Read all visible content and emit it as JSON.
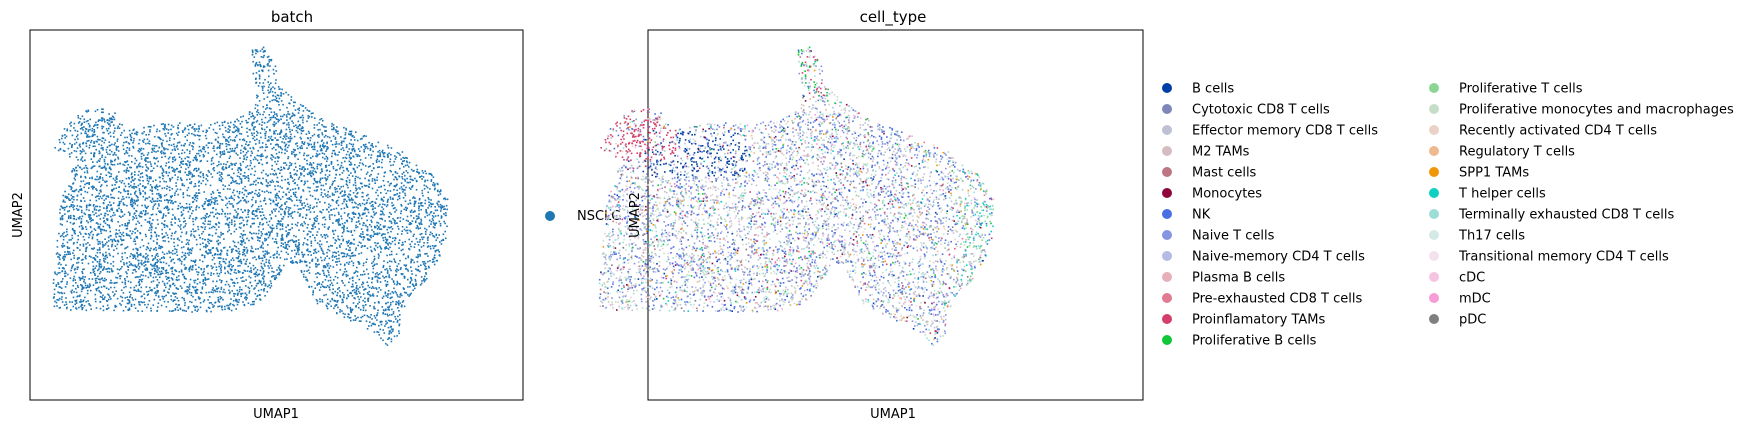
{
  "chart_data": [
    {
      "type": "scatter",
      "title": "batch",
      "xlabel": "UMAP1",
      "ylabel": "UMAP2",
      "grid": false,
      "axis_ticks": false,
      "legend_placement": "right",
      "series": [
        {
          "name": "NSCLC",
          "color": "#1f77b4",
          "region": "whole-embedding"
        }
      ]
    },
    {
      "type": "scatter",
      "title": "cell_type",
      "xlabel": "UMAP1",
      "ylabel": "UMAP2",
      "grid": false,
      "axis_ticks": false,
      "legend_placement": "right",
      "legend_columns": 2,
      "series": [
        {
          "name": "B cells",
          "color": "#023fa5"
        },
        {
          "name": "Cytotoxic CD8 T cells",
          "color": "#7d87b9"
        },
        {
          "name": "Effector memory CD8 T cells",
          "color": "#bec1d4"
        },
        {
          "name": "M2 TAMs",
          "color": "#d6bcc0"
        },
        {
          "name": "Mast cells",
          "color": "#bb7784"
        },
        {
          "name": "Monocytes",
          "color": "#8e063b"
        },
        {
          "name": "NK",
          "color": "#4a6fe3"
        },
        {
          "name": "Naive T cells",
          "color": "#8595e1"
        },
        {
          "name": "Naive-memory CD4 T cells",
          "color": "#b5bbe3"
        },
        {
          "name": "Plasma B cells",
          "color": "#e6afb9"
        },
        {
          "name": "Pre-exhausted CD8 T cells",
          "color": "#e07b91"
        },
        {
          "name": "Proinflamatory TAMs",
          "color": "#d33f6a"
        },
        {
          "name": "Proliferative B cells",
          "color": "#11c638"
        },
        {
          "name": "Proliferative T cells",
          "color": "#8dd593"
        },
        {
          "name": "Proliferative monocytes and macrophages",
          "color": "#c6dec7"
        },
        {
          "name": "Recently activated CD4 T cells",
          "color": "#ead3c6"
        },
        {
          "name": "Regulatory T cells",
          "color": "#f0b98d"
        },
        {
          "name": "SPP1 TAMs",
          "color": "#ef9708"
        },
        {
          "name": "T helper cells",
          "color": "#0fcfc0"
        },
        {
          "name": "Terminally exhausted CD8 T cells",
          "color": "#9cded6"
        },
        {
          "name": "Th17 cells",
          "color": "#d5eae7"
        },
        {
          "name": "Transitional memory CD4 T cells",
          "color": "#f3e1eb"
        },
        {
          "name": "cDC",
          "color": "#f6c4e1"
        },
        {
          "name": "mDC",
          "color": "#f79cd4"
        },
        {
          "name": "pDC",
          "color": "#7f7f7f"
        }
      ]
    }
  ]
}
